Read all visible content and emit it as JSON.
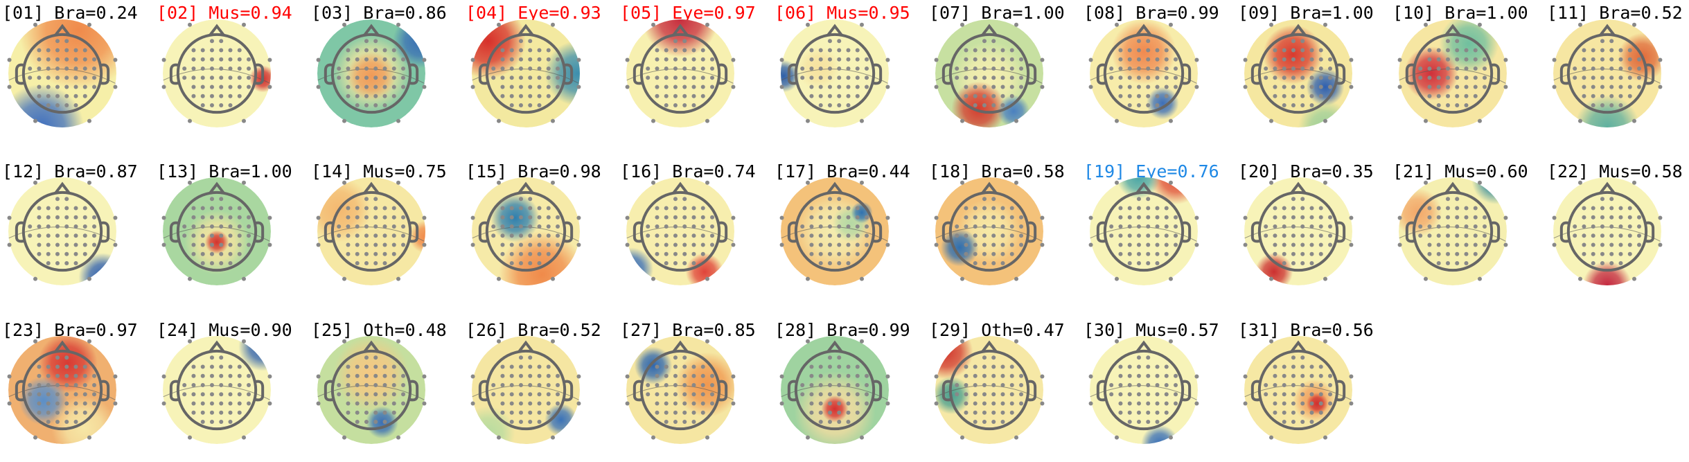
{
  "components": [
    {
      "label": "[01] Bra=0.24",
      "color": "#000000"
    },
    {
      "label": "[02] Mus=0.94",
      "color": "#ff0000"
    },
    {
      "label": "[03] Bra=0.86",
      "color": "#000000"
    },
    {
      "label": "[04] Eye=0.93",
      "color": "#ff0000"
    },
    {
      "label": "[05] Eye=0.97",
      "color": "#ff0000"
    },
    {
      "label": "[06] Mus=0.95",
      "color": "#ff0000"
    },
    {
      "label": "[07] Bra=1.00",
      "color": "#000000"
    },
    {
      "label": "[08] Bra=0.99",
      "color": "#000000"
    },
    {
      "label": "[09] Bra=1.00",
      "color": "#000000"
    },
    {
      "label": "[10] Bra=1.00",
      "color": "#000000"
    },
    {
      "label": "[11] Bra=0.52",
      "color": "#000000"
    },
    {
      "label": "[12] Bra=0.87",
      "color": "#000000"
    },
    {
      "label": "[13] Bra=1.00",
      "color": "#000000"
    },
    {
      "label": "[14] Mus=0.75",
      "color": "#000000"
    },
    {
      "label": "[15] Bra=0.98",
      "color": "#000000"
    },
    {
      "label": "[16] Bra=0.74",
      "color": "#000000"
    },
    {
      "label": "[17] Bra=0.44",
      "color": "#000000"
    },
    {
      "label": "[18] Bra=0.58",
      "color": "#000000"
    },
    {
      "label": "[19] Eye=0.76",
      "color": "#1e88e5"
    },
    {
      "label": "[20] Bra=0.35",
      "color": "#000000"
    },
    {
      "label": "[21] Mus=0.60",
      "color": "#000000"
    },
    {
      "label": "[22] Mus=0.58",
      "color": "#000000"
    },
    {
      "label": "[23] Bra=0.97",
      "color": "#000000"
    },
    {
      "label": "[24] Mus=0.90",
      "color": "#000000"
    },
    {
      "label": "[25] Oth=0.48",
      "color": "#000000"
    },
    {
      "label": "[26] Bra=0.52",
      "color": "#000000"
    },
    {
      "label": "[27] Bra=0.85",
      "color": "#000000"
    },
    {
      "label": "[28] Bra=0.99",
      "color": "#000000"
    },
    {
      "label": "[29] Oth=0.47",
      "color": "#000000"
    },
    {
      "label": "[30] Mus=0.57",
      "color": "#000000"
    },
    {
      "label": "[31] Bra=0.56",
      "color": "#000000"
    }
  ]
}
